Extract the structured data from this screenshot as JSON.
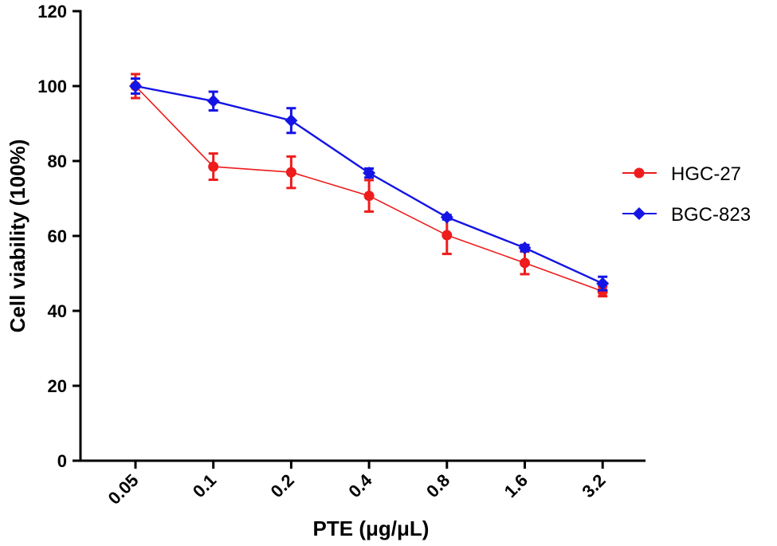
{
  "chart_data": {
    "type": "line",
    "title": "",
    "xlabel": "PTE (μg/μL)",
    "ylabel": "Cell viability (100%)",
    "categories": [
      "0.05",
      "0.1",
      "0.2",
      "0.4",
      "0.8",
      "1.6",
      "3.2"
    ],
    "ylim": [
      0,
      120
    ],
    "yticks": [
      "0",
      "20",
      "40",
      "60",
      "80",
      "100",
      "120"
    ],
    "grid": false,
    "legend_position": "right",
    "series": [
      {
        "name": "HGC-27",
        "color": "#ee1c1c",
        "marker": "circle",
        "values": [
          100,
          78.5,
          77,
          70.7,
          60.2,
          52.8,
          45.2
        ],
        "errors": [
          3.2,
          3.5,
          4.2,
          4.2,
          5.0,
          3.0,
          1.3
        ]
      },
      {
        "name": "BGC-823",
        "color": "#1414e6",
        "marker": "diamond",
        "values": [
          100,
          96,
          90.8,
          76.8,
          65,
          56.8,
          47.3
        ],
        "errors": [
          2.0,
          2.5,
          3.3,
          1.2,
          0.6,
          0.8,
          1.8
        ]
      }
    ]
  }
}
